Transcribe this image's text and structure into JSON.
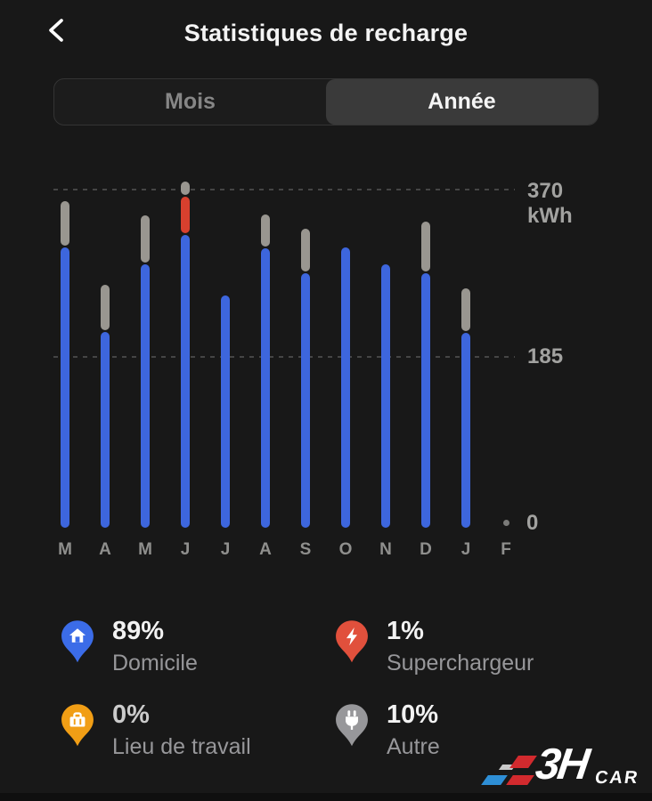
{
  "header": {
    "title": "Statistiques de recharge"
  },
  "tabs": {
    "month_label": "Mois",
    "year_label": "Année",
    "selected": "Année"
  },
  "chart_data": {
    "type": "bar",
    "stacked": true,
    "unit": "kWh",
    "categories": [
      "M",
      "A",
      "M",
      "J",
      "J",
      "A",
      "S",
      "O",
      "N",
      "D",
      "J",
      "F"
    ],
    "series": [
      {
        "name": "Domicile",
        "color": "#3d66dd",
        "values": [
          307,
          214,
          288,
          320,
          254,
          306,
          278,
          307,
          288,
          278,
          213,
          0
        ]
      },
      {
        "name": "Superchargeur",
        "color": "#d8402e",
        "values": [
          0,
          0,
          0,
          40,
          0,
          0,
          0,
          0,
          0,
          0,
          0,
          0
        ]
      },
      {
        "name": "Autre",
        "color": "#999690",
        "values": [
          49,
          50,
          52,
          15,
          0,
          35,
          47,
          0,
          0,
          55,
          47,
          1
        ]
      }
    ],
    "ylim": [
      0,
      370
    ],
    "y_ticks": [
      {
        "value": 370,
        "label": "370",
        "sub": "kWh"
      },
      {
        "value": 185,
        "label": "185"
      },
      {
        "value": 0,
        "label": "0"
      }
    ],
    "gridlines": "dashed-horizontal",
    "legend_position": "bottom"
  },
  "legend": [
    {
      "percent": "89%",
      "label": "Domicile",
      "icon": "home-pin-icon",
      "pin_color": "#3b6ce8",
      "percent_color": "#f2f2f2"
    },
    {
      "percent": "1%",
      "label": "Superchargeur",
      "icon": "lightning-pin-icon",
      "pin_color": "#e1503c",
      "percent_color": "#f2f2f2"
    },
    {
      "percent": "0%",
      "label": "Lieu de travail",
      "icon": "briefcase-pin-icon",
      "pin_color": "#f19e15",
      "percent_color": "#cbcbcb"
    },
    {
      "percent": "10%",
      "label": "Autre",
      "icon": "plug-pin-icon",
      "pin_color": "#97979a",
      "percent_color": "#f2f2f2"
    }
  ],
  "watermark": {
    "main": "3H",
    "sub": "CAR"
  }
}
